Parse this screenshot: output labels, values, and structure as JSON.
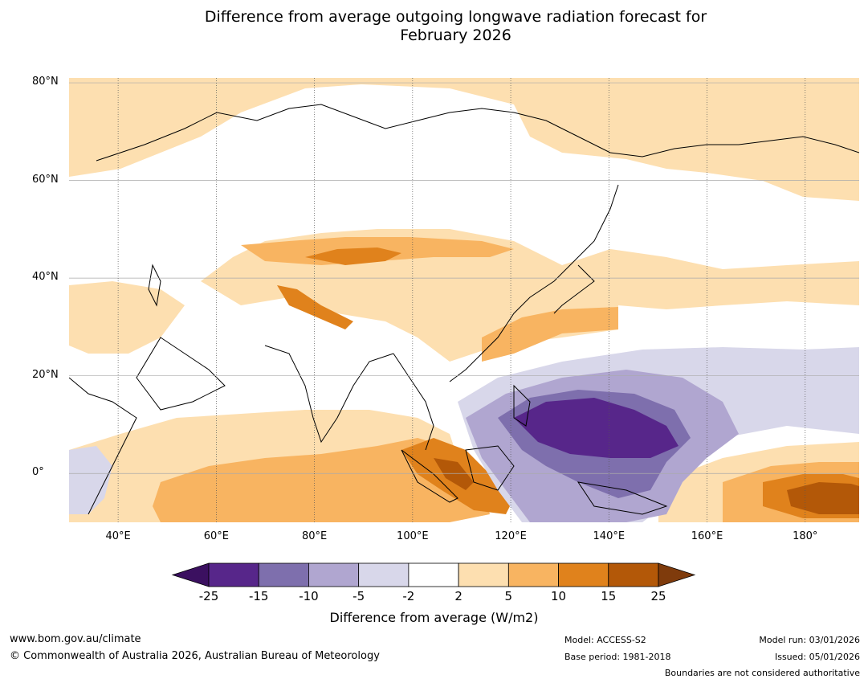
{
  "title": {
    "line1": "Difference from average outgoing longwave radiation forecast for",
    "line2": "February 2026"
  },
  "map": {
    "lat_labels": [
      "80°N",
      "60°N",
      "40°N",
      "20°N",
      "0°"
    ],
    "lat_values": [
      80,
      60,
      40,
      20,
      0
    ],
    "lon_labels": [
      "40°E",
      "60°E",
      "80°E",
      "100°E",
      "120°E",
      "140°E",
      "160°E",
      "180°"
    ],
    "lon_values": [
      40,
      60,
      80,
      100,
      120,
      140,
      160,
      180
    ],
    "extent": {
      "lon_min": 30,
      "lon_max": 191,
      "lat_min": -10,
      "lat_max": 81
    }
  },
  "colorbar": {
    "ticks": [
      "-25",
      "-15",
      "-10",
      "-5",
      "-2",
      "2",
      "5",
      "10",
      "15",
      "25"
    ],
    "colors": [
      "#3b1060",
      "#57268a",
      "#7e6fad",
      "#b0a6d0",
      "#d8d7ea",
      "#ffffff",
      "#fddfb0",
      "#f8b461",
      "#e0821c",
      "#b35808",
      "#7f3b0c"
    ],
    "label": "Difference from average (W/m2)"
  },
  "footer": {
    "website": "www.bom.gov.au/climate",
    "copyright": "© Commonwealth of Australia 2026, Australian Bureau of Meteorology",
    "model": "Model: ACCESS-S2",
    "base_period": "Base period: 1981-2018",
    "model_run": "Model run: 03/01/2026",
    "issued": "Issued: 05/01/2026",
    "disclaimer": "Boundaries are not considered authoritative"
  }
}
